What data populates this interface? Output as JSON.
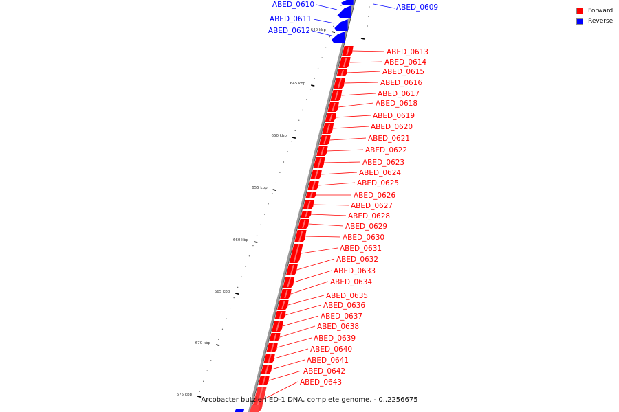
{
  "caption": "Arcobacter butzleri ED-1 DNA, complete genome. - 0..2256675",
  "colors": {
    "forward": "#ff0000",
    "reverse": "#0000ff",
    "backbone": "#888888"
  },
  "legend": [
    {
      "label": "Forward",
      "color": "#ff0000"
    },
    {
      "label": "Reverse",
      "color": "#0000ff"
    }
  ],
  "kbp_ticks": [
    "640 kbp",
    "645 kbp",
    "650 kbp",
    "655 kbp",
    "660 kbp",
    "665 kbp",
    "670 kbp",
    "675 kbp"
  ],
  "reverse_genes": [
    "ABED_0609",
    "ABED_0610",
    "ABED_0611",
    "ABED_0612"
  ],
  "forward_genes": [
    "ABED_0613",
    "ABED_0614",
    "ABED_0615",
    "ABED_0616",
    "ABED_0617",
    "ABED_0618",
    "ABED_0619",
    "ABED_0620",
    "ABED_0621",
    "ABED_0622",
    "ABED_0623",
    "ABED_0624",
    "ABED_0625",
    "ABED_0626",
    "ABED_0627",
    "ABED_0628",
    "ABED_0629",
    "ABED_0630",
    "ABED_0631",
    "ABED_0632",
    "ABED_0633",
    "ABED_0634",
    "ABED_0635",
    "ABED_0636",
    "ABED_0637",
    "ABED_0638",
    "ABED_0639",
    "ABED_0640",
    "ABED_0641",
    "ABED_0642",
    "ABED_0643"
  ]
}
